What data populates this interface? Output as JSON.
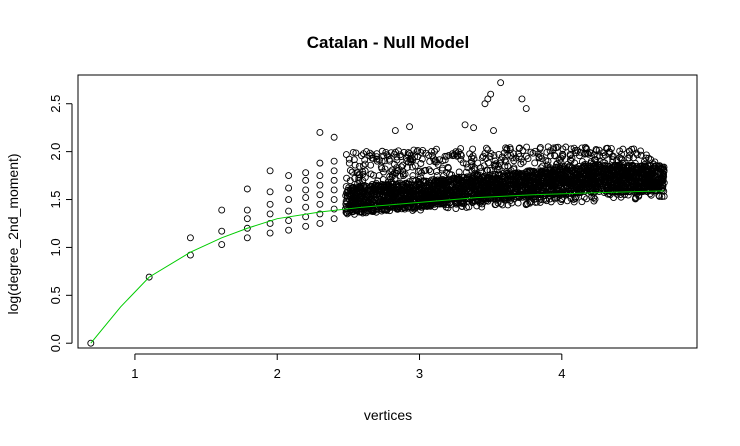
{
  "chart_data": {
    "type": "scatter",
    "title": "Catalan - Null Model",
    "xlabel": "vertices",
    "ylabel": "log(degree_2nd_moment)",
    "xlim": [
      0.6,
      4.95
    ],
    "ylim": [
      -0.05,
      2.8
    ],
    "x_ticks": [
      1,
      2,
      3,
      4
    ],
    "y_ticks": [
      0.0,
      0.5,
      1.0,
      1.5,
      2.0,
      2.5
    ],
    "x_tick_labels": [
      "1",
      "2",
      "3",
      "4"
    ],
    "y_tick_labels": [
      "0.0",
      "0.5",
      "1.0",
      "1.5",
      "2.0",
      "2.5"
    ],
    "grid": false,
    "legend": "none",
    "colors": {
      "points": "#000000",
      "fit_line": "#00cc00"
    },
    "series": [
      {
        "type": "scatter",
        "marker": "open-circle",
        "points": [
          [
            0.69,
            0.0
          ],
          [
            1.1,
            0.69
          ],
          [
            1.39,
            0.92
          ],
          [
            1.39,
            1.1
          ],
          [
            1.61,
            1.03
          ],
          [
            1.61,
            1.17
          ],
          [
            1.61,
            1.39
          ],
          [
            1.79,
            1.1
          ],
          [
            1.79,
            1.2
          ],
          [
            1.79,
            1.3
          ],
          [
            1.79,
            1.39
          ],
          [
            1.79,
            1.61
          ],
          [
            1.95,
            1.15
          ],
          [
            1.95,
            1.25
          ],
          [
            1.95,
            1.35
          ],
          [
            1.95,
            1.45
          ],
          [
            1.95,
            1.58
          ],
          [
            1.95,
            1.8
          ],
          [
            2.08,
            1.18
          ],
          [
            2.08,
            1.28
          ],
          [
            2.08,
            1.38
          ],
          [
            2.08,
            1.5
          ],
          [
            2.08,
            1.62
          ],
          [
            2.08,
            1.75
          ],
          [
            2.2,
            1.22
          ],
          [
            2.2,
            1.32
          ],
          [
            2.2,
            1.42
          ],
          [
            2.2,
            1.52
          ],
          [
            2.2,
            1.6
          ],
          [
            2.2,
            1.7
          ],
          [
            2.2,
            1.78
          ],
          [
            2.3,
            1.25
          ],
          [
            2.3,
            1.35
          ],
          [
            2.3,
            1.45
          ],
          [
            2.3,
            1.55
          ],
          [
            2.3,
            1.65
          ],
          [
            2.3,
            1.75
          ],
          [
            2.3,
            1.88
          ],
          [
            2.3,
            2.2
          ],
          [
            2.4,
            1.3
          ],
          [
            2.4,
            1.4
          ],
          [
            2.4,
            1.5
          ],
          [
            2.4,
            1.6
          ],
          [
            2.4,
            1.7
          ],
          [
            2.4,
            1.8
          ],
          [
            2.4,
            1.9
          ],
          [
            2.4,
            2.15
          ],
          [
            3.46,
            2.5
          ],
          [
            3.48,
            2.55
          ],
          [
            3.5,
            2.6
          ],
          [
            3.57,
            2.72
          ],
          [
            3.72,
            2.55
          ],
          [
            3.75,
            2.45
          ],
          [
            3.32,
            2.28
          ],
          [
            3.38,
            2.25
          ],
          [
            2.83,
            2.22
          ],
          [
            2.93,
            2.26
          ],
          [
            3.52,
            2.22
          ]
        ],
        "cloud": {
          "description": "dense band of open circles",
          "x_range": [
            2.48,
            4.72
          ],
          "y_lower_range": [
            1.34,
            1.52
          ],
          "y_upper_range": [
            1.95,
            2.05
          ],
          "center_range": [
            1.48,
            1.72
          ]
        }
      },
      {
        "type": "line",
        "points": [
          [
            0.69,
            0.0
          ],
          [
            0.9,
            0.38
          ],
          [
            1.1,
            0.69
          ],
          [
            1.39,
            0.95
          ],
          [
            1.61,
            1.1
          ],
          [
            1.79,
            1.2
          ],
          [
            2.0,
            1.3
          ],
          [
            2.3,
            1.37
          ],
          [
            2.6,
            1.42
          ],
          [
            3.0,
            1.47
          ],
          [
            3.4,
            1.52
          ],
          [
            3.8,
            1.55
          ],
          [
            4.2,
            1.57
          ],
          [
            4.72,
            1.59
          ]
        ]
      }
    ]
  }
}
